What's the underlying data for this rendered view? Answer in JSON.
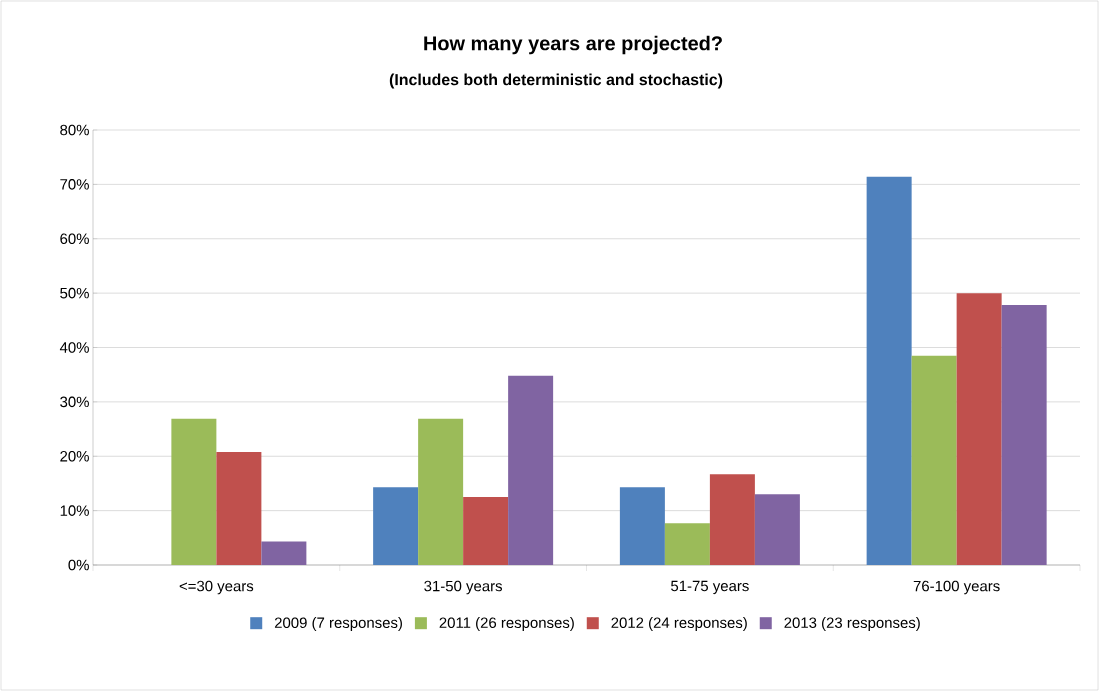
{
  "chart_data": {
    "type": "bar",
    "title": "How many years are projected?",
    "subtitle": "(Includes both deterministic and stochastic)",
    "categories": [
      "<=30 years",
      "31-50 years",
      "51-75 years",
      "76-100 years"
    ],
    "series": [
      {
        "name": "2009 (7 responses)",
        "color": "#4f81bd",
        "values": [
          0,
          14.3,
          14.3,
          71.4
        ]
      },
      {
        "name": "2011 (26 responses)",
        "color": "#9bbb59",
        "values": [
          26.9,
          26.9,
          7.7,
          38.5
        ]
      },
      {
        "name": "2012 (24 responses)",
        "color": "#c0504d",
        "values": [
          20.8,
          12.5,
          16.7,
          50.0
        ]
      },
      {
        "name": "2013 (23 responses)",
        "color": "#8064a2",
        "values": [
          4.3,
          34.8,
          13.0,
          47.8
        ]
      }
    ],
    "ylim": [
      0,
      80
    ],
    "yticks": [
      {
        "value": 0,
        "label": "0%"
      },
      {
        "value": 10,
        "label": "10%"
      },
      {
        "value": 20,
        "label": "20%"
      },
      {
        "value": 30,
        "label": "30%"
      },
      {
        "value": 40,
        "label": "40%"
      },
      {
        "value": 50,
        "label": "50%"
      },
      {
        "value": 60,
        "label": "60%"
      },
      {
        "value": 70,
        "label": "70%"
      },
      {
        "value": 80,
        "label": "80%"
      }
    ],
    "grid": "y",
    "legend": "bottom"
  }
}
